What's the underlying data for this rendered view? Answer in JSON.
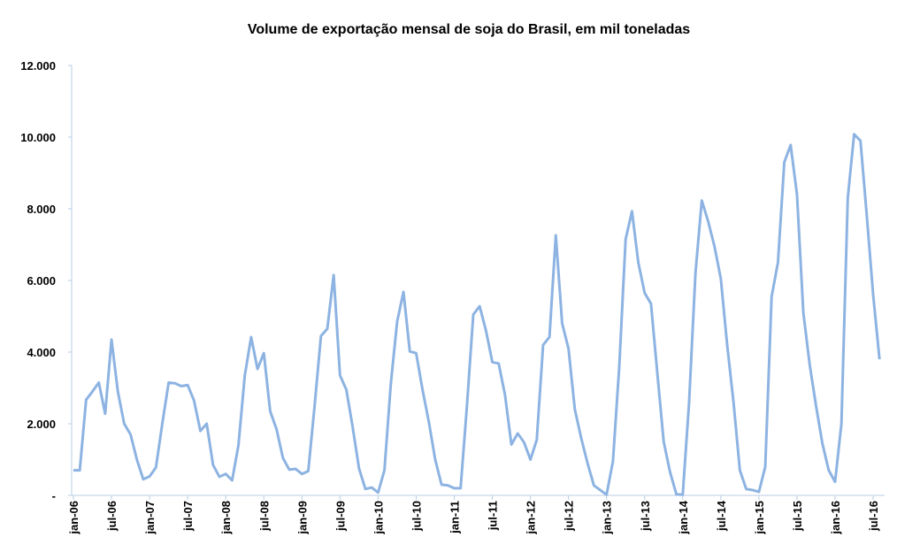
{
  "chart_data": {
    "type": "line",
    "title": "Volume de exportação mensal de soja do Brasil, em mil toneladas",
    "categories": [
      "jan-06",
      null,
      null,
      null,
      null,
      null,
      "jul-06",
      null,
      null,
      null,
      null,
      null,
      "jan-07",
      null,
      null,
      null,
      null,
      null,
      "jul-07",
      null,
      null,
      null,
      null,
      null,
      "jan-08",
      null,
      null,
      null,
      null,
      null,
      "jul-08",
      null,
      null,
      null,
      null,
      null,
      "jan-09",
      null,
      null,
      null,
      null,
      null,
      "jul-09",
      null,
      null,
      null,
      null,
      null,
      "jan-10",
      null,
      null,
      null,
      null,
      null,
      "jul-10",
      null,
      null,
      null,
      null,
      null,
      "jan-11",
      null,
      null,
      null,
      null,
      null,
      "jul-11",
      null,
      null,
      null,
      null,
      null,
      "jan-12",
      null,
      null,
      null,
      null,
      null,
      "jul-12",
      null,
      null,
      null,
      null,
      null,
      "jan-13",
      null,
      null,
      null,
      null,
      null,
      "jul-13",
      null,
      null,
      null,
      null,
      null,
      "jan-14",
      null,
      null,
      null,
      null,
      null,
      "jul-14",
      null,
      null,
      null,
      null,
      null,
      "jan-15",
      null,
      null,
      null,
      null,
      null,
      "jul-15",
      null,
      null,
      null,
      null,
      null,
      "jan-16",
      null,
      null,
      null,
      null,
      null,
      "jul-16",
      null
    ],
    "values": [
      700,
      700,
      2670,
      2900,
      3150,
      2280,
      4350,
      2900,
      2000,
      1700,
      1000,
      450,
      530,
      780,
      2000,
      3150,
      3130,
      3050,
      3080,
      2650,
      1800,
      2000,
      850,
      520,
      600,
      420,
      1400,
      3350,
      4420,
      3530,
      3970,
      2350,
      1850,
      1050,
      720,
      740,
      600,
      680,
      2500,
      4450,
      4650,
      6150,
      3350,
      2950,
      1900,
      750,
      180,
      220,
      80,
      700,
      3100,
      4850,
      5680,
      4020,
      3970,
      2950,
      2050,
      1000,
      300,
      280,
      200,
      200,
      2500,
      5050,
      5280,
      4600,
      3720,
      3680,
      2800,
      1420,
      1730,
      1480,
      1000,
      1550,
      4200,
      4420,
      7260,
      4800,
      4100,
      2400,
      1600,
      900,
      280,
      150,
      20,
      950,
      3600,
      7150,
      7930,
      6500,
      5650,
      5350,
      3400,
      1500,
      650,
      30,
      20,
      2600,
      6200,
      8230,
      7650,
      6950,
      6050,
      4200,
      2600,
      700,
      180,
      150,
      100,
      800,
      5550,
      6500,
      9300,
      9780,
      8400,
      5100,
      3650,
      2500,
      1450,
      700,
      380,
      2000,
      8300,
      10080,
      9900,
      7800,
      5600,
      3800
    ],
    "color": "#8db3e2",
    "ylim": [
      0,
      12000
    ],
    "yticks": [
      {
        "value": 0,
        "label": "-"
      },
      {
        "value": 2000,
        "label": "2.000"
      },
      {
        "value": 4000,
        "label": "4.000"
      },
      {
        "value": 6000,
        "label": "6.000"
      },
      {
        "value": 8000,
        "label": "8.000"
      },
      {
        "value": 10000,
        "label": "10.000"
      },
      {
        "value": 12000,
        "label": "12.000"
      }
    ],
    "grid": false
  }
}
